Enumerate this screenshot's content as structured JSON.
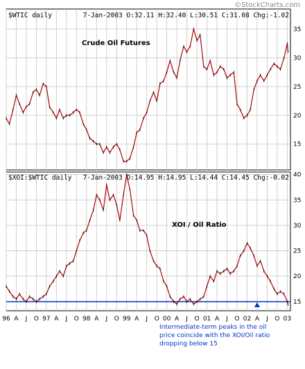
{
  "watermark": "©StockCharts.com",
  "chart_data": [
    {
      "type": "line",
      "header_left": "$WTIC daily",
      "header_right": "7-Jan-2003 O:32.11 H:32.40 L:30.51 C:31.08 Chg:-1.02",
      "title": "Crude Oil Futures",
      "ylim": [
        10.5,
        38.5
      ],
      "yticks": [
        15,
        20,
        25,
        30,
        35
      ],
      "line_color": "#b00000",
      "x": [
        1996.0,
        1996.08,
        1996.17,
        1996.25,
        1996.33,
        1996.42,
        1996.5,
        1996.58,
        1996.67,
        1996.75,
        1996.83,
        1996.92,
        1997.0,
        1997.08,
        1997.17,
        1997.25,
        1997.33,
        1997.42,
        1997.5,
        1997.58,
        1997.67,
        1997.75,
        1997.83,
        1997.92,
        1998.0,
        1998.08,
        1998.17,
        1998.25,
        1998.33,
        1998.42,
        1998.5,
        1998.58,
        1998.67,
        1998.75,
        1998.83,
        1998.92,
        1999.0,
        1999.08,
        1999.17,
        1999.25,
        1999.33,
        1999.42,
        1999.5,
        1999.58,
        1999.67,
        1999.75,
        1999.83,
        1999.92,
        2000.0,
        2000.08,
        2000.17,
        2000.25,
        2000.33,
        2000.42,
        2000.5,
        2000.58,
        2000.67,
        2000.75,
        2000.83,
        2000.92,
        2001.0,
        2001.08,
        2001.17,
        2001.25,
        2001.33,
        2001.42,
        2001.5,
        2001.58,
        2001.67,
        2001.75,
        2001.83,
        2001.92,
        2002.0,
        2002.08,
        2002.17,
        2002.25,
        2002.33,
        2002.42,
        2002.5,
        2002.58,
        2002.67,
        2002.75,
        2002.83,
        2002.92,
        2003.0,
        2003.02
      ],
      "values": [
        19.5,
        18.5,
        21,
        23.5,
        22,
        20.5,
        21.5,
        22,
        24,
        24.5,
        23.5,
        25.5,
        25,
        21.5,
        20.5,
        19.5,
        21,
        19.5,
        20,
        20,
        20.5,
        21,
        20.5,
        18.5,
        17.5,
        16,
        15.5,
        15,
        15,
        13.5,
        14.5,
        13.5,
        14.5,
        15,
        14,
        12,
        12,
        12.5,
        14.5,
        17,
        17.5,
        19.5,
        20.5,
        22.5,
        24,
        22.5,
        25.5,
        26,
        27.5,
        29.5,
        27.5,
        26.5,
        29.5,
        32,
        31,
        32,
        35,
        33,
        34,
        28.5,
        28,
        29.5,
        27,
        27.5,
        28.5,
        28,
        26.5,
        27,
        27.5,
        22,
        21,
        19.5,
        20,
        21,
        24.5,
        26,
        27,
        26,
        27,
        28,
        29,
        28.5,
        28,
        30,
        32.5,
        31.08
      ]
    },
    {
      "type": "line",
      "header_left": "$XOI:$WTIC daily",
      "header_right": "7-Jan-2003 O:14.95 H:14.95 L:14.44 C:14.45 Chg:-0.02",
      "title": "XOI / Oil Ratio",
      "ylim": [
        13.2,
        40.5
      ],
      "yticks": [
        15,
        20,
        25,
        30,
        35,
        40
      ],
      "line_color": "#b00000",
      "reference_line": 15,
      "reference_color": "#0033cc",
      "x": [
        1996.0,
        1996.08,
        1996.17,
        1996.25,
        1996.33,
        1996.42,
        1996.5,
        1996.58,
        1996.67,
        1996.75,
        1996.83,
        1996.92,
        1997.0,
        1997.08,
        1997.17,
        1997.25,
        1997.33,
        1997.42,
        1997.5,
        1997.58,
        1997.67,
        1997.75,
        1997.83,
        1997.92,
        1998.0,
        1998.08,
        1998.17,
        1998.25,
        1998.33,
        1998.42,
        1998.5,
        1998.58,
        1998.67,
        1998.75,
        1998.83,
        1998.92,
        1999.0,
        1999.08,
        1999.17,
        1999.25,
        1999.33,
        1999.42,
        1999.5,
        1999.58,
        1999.67,
        1999.75,
        1999.83,
        1999.92,
        2000.0,
        2000.08,
        2000.17,
        2000.25,
        2000.33,
        2000.42,
        2000.5,
        2000.58,
        2000.67,
        2000.75,
        2000.83,
        2000.92,
        2001.0,
        2001.08,
        2001.17,
        2001.25,
        2001.33,
        2001.42,
        2001.5,
        2001.58,
        2001.67,
        2001.75,
        2001.83,
        2001.92,
        2002.0,
        2002.08,
        2002.17,
        2002.25,
        2002.33,
        2002.42,
        2002.5,
        2002.58,
        2002.67,
        2002.75,
        2002.83,
        2002.92,
        2003.0,
        2003.02
      ],
      "values": [
        18,
        17,
        16,
        15.5,
        16.5,
        15.5,
        15,
        16,
        15.5,
        15,
        15.5,
        16,
        16.5,
        18,
        19,
        20,
        21,
        20,
        22,
        22.5,
        23,
        25,
        27,
        28.5,
        29,
        31,
        33,
        36,
        35,
        33,
        38,
        35,
        36,
        34,
        31,
        36,
        40,
        37,
        32,
        31,
        29,
        29,
        28,
        25,
        23,
        22,
        21.5,
        19,
        18,
        16,
        15,
        14.5,
        15.5,
        16,
        15,
        15.5,
        14.5,
        15,
        15.5,
        16,
        18,
        20,
        19,
        21,
        20.5,
        21,
        21.5,
        20.5,
        21,
        22,
        24,
        25,
        26.5,
        25.5,
        24,
        22,
        23,
        21,
        20,
        19,
        17.5,
        16.5,
        17,
        16.5,
        15,
        14.45
      ]
    }
  ],
  "x_axis": {
    "labels": [
      "96",
      "A",
      "J",
      "O",
      "97",
      "A",
      "J",
      "O",
      "98",
      "A",
      "J",
      "O",
      "99",
      "A",
      "J",
      "O",
      "00",
      "A",
      "J",
      "O",
      "01",
      "A",
      "J",
      "O",
      "02",
      "A",
      "J",
      "O",
      "03"
    ],
    "label_x": [
      1996.0,
      1996.25,
      1996.5,
      1996.75,
      1997.0,
      1997.25,
      1997.5,
      1997.75,
      1998.0,
      1998.25,
      1998.5,
      1998.75,
      1999.0,
      1999.25,
      1999.5,
      1999.75,
      2000.0,
      2000.25,
      2000.5,
      2000.75,
      2001.0,
      2001.25,
      2001.5,
      2001.75,
      2002.0,
      2002.25,
      2002.5,
      2002.75,
      2003.0
    ],
    "xlim": [
      1996.0,
      2003.08
    ]
  },
  "annotation": {
    "arrow_x": 2002.25,
    "lines": [
      "Intermediate-term peaks in the oil",
      "price coincide with the XOI/Oil ratio",
      "dropping below 15"
    ]
  }
}
